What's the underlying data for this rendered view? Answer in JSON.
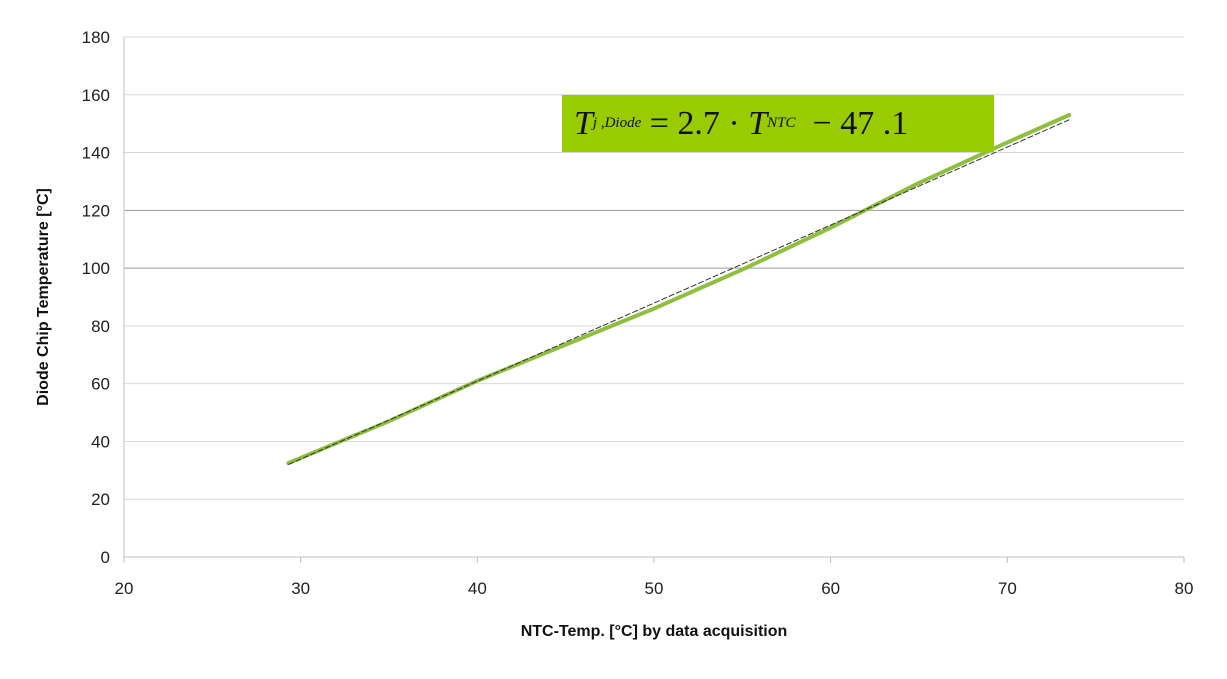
{
  "chart_data": {
    "type": "line",
    "title": "",
    "xlabel": "NTC-Temp. [°C] by data acquisition",
    "ylabel": "Diode Chip Temperature  [°C]",
    "xlim": [
      20,
      80
    ],
    "ylim": [
      0,
      180
    ],
    "xticks": [
      20,
      30,
      40,
      50,
      60,
      70,
      80
    ],
    "yticks": [
      0,
      20,
      40,
      60,
      80,
      100,
      120,
      140,
      160,
      180
    ],
    "grid": "horizontal",
    "series": [
      {
        "color": "#8fbf3f",
        "x": [
          29.3,
          35,
          40,
          45,
          50,
          55,
          60,
          65,
          70,
          73.5
        ],
        "y": [
          32.5,
          47,
          61,
          73.5,
          86,
          99.5,
          114,
          129.5,
          143.5,
          153
        ]
      }
    ],
    "fit_line": {
      "slope": 2.7,
      "intercept": -47.1,
      "x_range": [
        29.3,
        73.5
      ],
      "color": "#333333"
    },
    "annotation": {
      "lhs": "T",
      "lhs_sub": "j ,Diode",
      "eq": " = 2.7 · ",
      "var": "T",
      "var_sub": "NTC",
      "rhs": "  − 47 .1",
      "background": "#99cc00"
    }
  }
}
